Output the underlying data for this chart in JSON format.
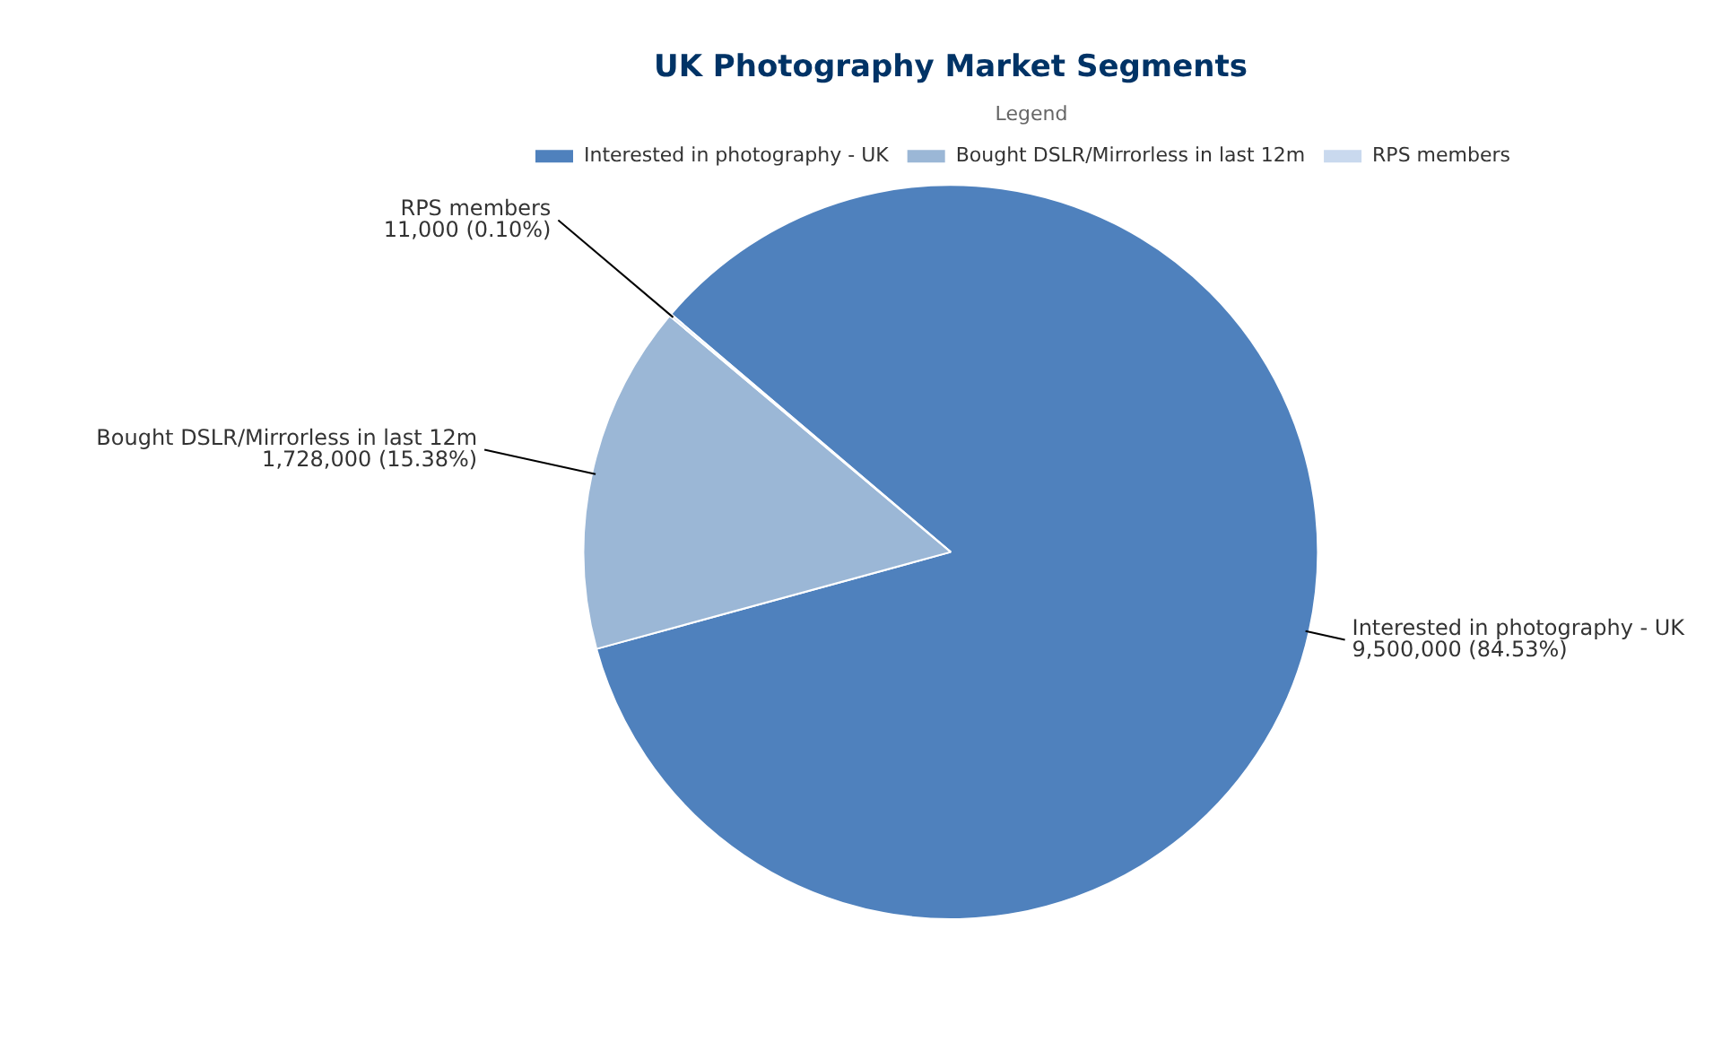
{
  "chart_data": {
    "type": "pie",
    "title": "UK Photography Market Segments",
    "categories": [
      "Interested in photography - UK",
      "Bought DSLR/Mirrorless in last 12m",
      "RPS members"
    ],
    "values": [
      9500000,
      1728000,
      11000
    ],
    "value_labels": [
      "9,500,000 (84.53%)",
      "1,728,000 (15.38%)",
      "11,000 (0.10%)"
    ],
    "colors": [
      "#4f81bd",
      "#9bb7d6",
      "#c9d9ee"
    ],
    "legend": "top right",
    "legend_title": "Legend"
  }
}
